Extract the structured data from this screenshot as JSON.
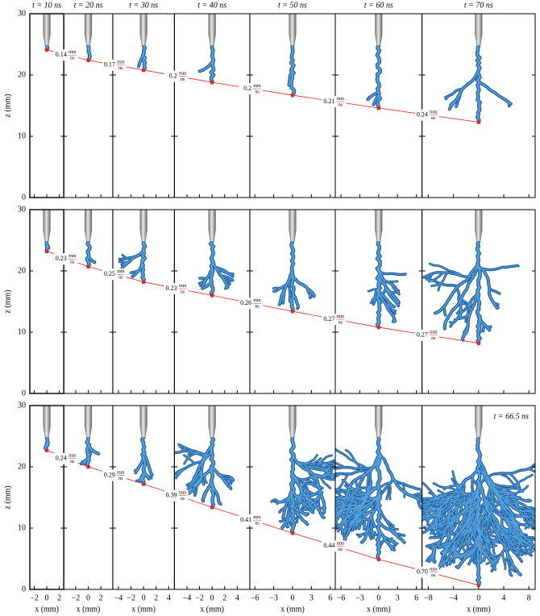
{
  "chart_data": {
    "type": "panels",
    "xlabel": "x (mm)",
    "ylabel": "z (mm)",
    "ylim": [
      0,
      30
    ],
    "yticks": [
      0,
      10,
      20,
      30
    ],
    "speed_unit": {
      "numerator": "mm",
      "denominator": "ns"
    },
    "marker_color": "#e8231f",
    "streamer_color": "#2a6fb5",
    "panels": [
      {
        "title": "t = 10 ns",
        "xlim": [
          -2.7,
          2.7
        ],
        "xticks": [
          {
            "value": -2,
            "label": "−2"
          },
          0,
          2
        ]
      },
      {
        "title": "t = 20 ns",
        "xlim": [
          -3.9,
          3.9
        ],
        "xticks": [
          {
            "value": -2,
            "label": "−2"
          },
          0,
          2
        ]
      },
      {
        "title": "t = 30 ns",
        "xlim": [
          -4.9,
          4.9
        ],
        "xticks": [
          {
            "value": -4,
            "label": "−4"
          },
          {
            "value": -2,
            "label": "−2"
          },
          0,
          2,
          4
        ]
      },
      {
        "title": "t = 40 ns",
        "xlim": [
          -6,
          6
        ],
        "xticks": [
          {
            "value": -4,
            "label": "−4"
          },
          {
            "value": -2,
            "label": "−2"
          },
          0,
          2,
          4
        ]
      },
      {
        "title": "t = 50 ns",
        "xlim": [
          -6.8,
          6.8
        ],
        "xticks": [
          {
            "value": -6,
            "label": "−6"
          },
          {
            "value": -3,
            "label": "−3"
          },
          0,
          3,
          6
        ]
      },
      {
        "title": "t = 60 ns",
        "xlim": [
          -6.9,
          6.9
        ],
        "xticks": [
          {
            "value": -6,
            "label": "−6"
          },
          {
            "value": -3,
            "label": "−3"
          },
          0,
          3,
          6
        ]
      },
      {
        "title": "t = 70 ns",
        "xlim": [
          -9,
          9
        ],
        "xticks": [
          {
            "value": -8,
            "label": "−8"
          },
          {
            "value": -4,
            "label": "−4"
          },
          0,
          4,
          8
        ]
      }
    ],
    "rows": [
      {
        "tip_z": [
          24.1,
          22.4,
          20.8,
          18.8,
          16.7,
          14.6,
          12.3
        ],
        "speeds": [
          0.14,
          0.17,
          0.2,
          0.2,
          0.21,
          0.24
        ]
      },
      {
        "tip_z": [
          23.2,
          20.7,
          18.2,
          16.0,
          13.4,
          10.8,
          8.2
        ],
        "speeds": [
          0.23,
          0.25,
          0.23,
          0.26,
          0.27,
          0.27
        ]
      },
      {
        "tip_z": [
          22.7,
          20.0,
          17.2,
          13.4,
          9.2,
          4.9,
          0.7
        ],
        "speeds": [
          0.24,
          0.29,
          0.39,
          0.41,
          0.44,
          0.7
        ],
        "value_labels": [
          "0.24",
          "0.29",
          "0.39",
          "0.41",
          "0.44",
          "0.70"
        ],
        "annotation": "t = 66.5 ns"
      }
    ]
  }
}
